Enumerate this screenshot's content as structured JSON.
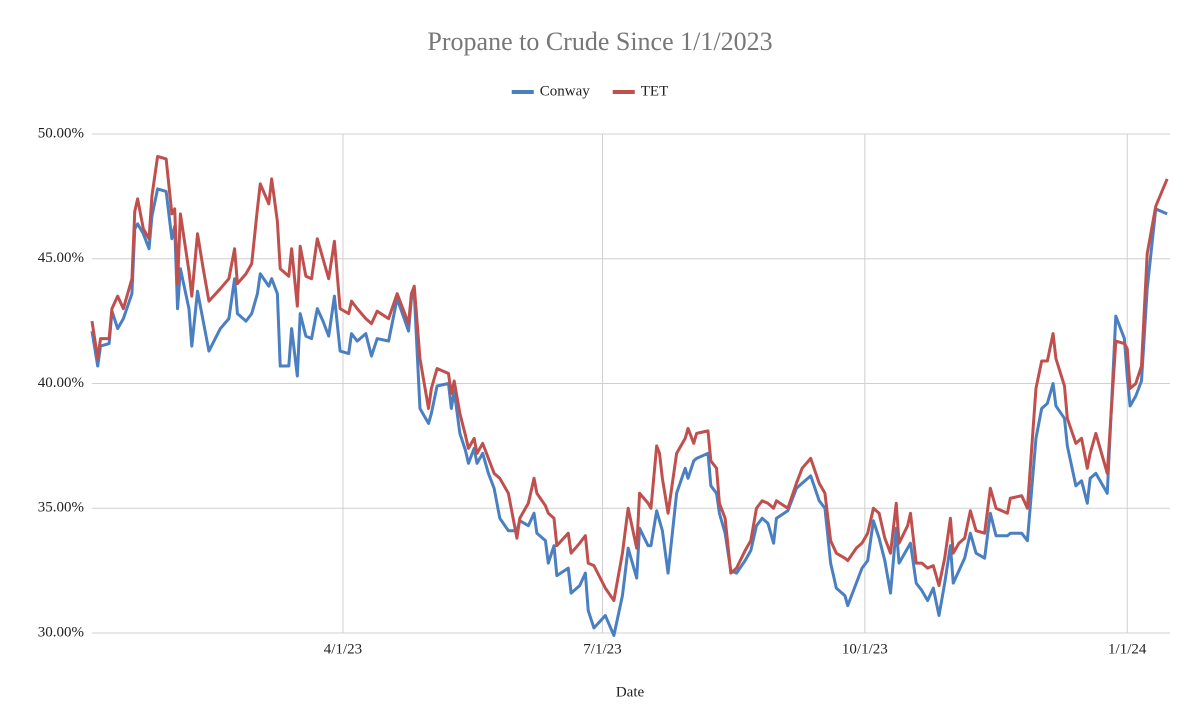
{
  "chart_data": {
    "type": "line",
    "title": "Propane to Crude Since 1/1/2023",
    "x_label": "Date",
    "legend": "top",
    "grid": true,
    "x": [
      "2023-01-03",
      "2023-01-05",
      "2023-01-06",
      "2023-01-09",
      "2023-01-10",
      "2023-01-12",
      "2023-01-14",
      "2023-01-17",
      "2023-01-18",
      "2023-01-19",
      "2023-01-21",
      "2023-01-23",
      "2023-01-24",
      "2023-01-26",
      "2023-01-29",
      "2023-01-31",
      "2023-02-01",
      "2023-02-02",
      "2023-02-03",
      "2023-02-06",
      "2023-02-07",
      "2023-02-09",
      "2023-02-11",
      "2023-02-13",
      "2023-02-17",
      "2023-02-20",
      "2023-02-22",
      "2023-02-23",
      "2023-02-26",
      "2023-02-28",
      "2023-03-02",
      "2023-03-03",
      "2023-03-06",
      "2023-03-07",
      "2023-03-09",
      "2023-03-10",
      "2023-03-13",
      "2023-03-14",
      "2023-03-16",
      "2023-03-17",
      "2023-03-19",
      "2023-03-21",
      "2023-03-23",
      "2023-03-25",
      "2023-03-27",
      "2023-03-29",
      "2023-03-31",
      "2023-04-03",
      "2023-04-04",
      "2023-04-06",
      "2023-04-09",
      "2023-04-11",
      "2023-04-13",
      "2023-04-17",
      "2023-04-20",
      "2023-04-24",
      "2023-04-25",
      "2023-04-26",
      "2023-04-28",
      "2023-05-01",
      "2023-05-02",
      "2023-05-04",
      "2023-05-08",
      "2023-05-09",
      "2023-05-10",
      "2023-05-12",
      "2023-05-14",
      "2023-05-15",
      "2023-05-17",
      "2023-05-18",
      "2023-05-20",
      "2023-05-22",
      "2023-05-24",
      "2023-05-26",
      "2023-05-29",
      "2023-06-01",
      "2023-06-02",
      "2023-06-05",
      "2023-06-07",
      "2023-06-08",
      "2023-06-11",
      "2023-06-12",
      "2023-06-14",
      "2023-06-15",
      "2023-06-19",
      "2023-06-20",
      "2023-06-23",
      "2023-06-25",
      "2023-06-26",
      "2023-06-28",
      "2023-07-02",
      "2023-07-05",
      "2023-07-08",
      "2023-07-10",
      "2023-07-13",
      "2023-07-14",
      "2023-07-17",
      "2023-07-18",
      "2023-07-20",
      "2023-07-21",
      "2023-07-22",
      "2023-07-24",
      "2023-07-27",
      "2023-07-30",
      "2023-07-31",
      "2023-08-02",
      "2023-08-03",
      "2023-08-07",
      "2023-08-08",
      "2023-08-10",
      "2023-08-11",
      "2023-08-13",
      "2023-08-15",
      "2023-08-17",
      "2023-08-20",
      "2023-08-22",
      "2023-08-24",
      "2023-08-26",
      "2023-08-28",
      "2023-08-30",
      "2023-08-31",
      "2023-09-04",
      "2023-09-07",
      "2023-09-09",
      "2023-09-12",
      "2023-09-15",
      "2023-09-17",
      "2023-09-19",
      "2023-09-21",
      "2023-09-24",
      "2023-09-25",
      "2023-09-28",
      "2023-09-30",
      "2023-10-02",
      "2023-10-04",
      "2023-10-06",
      "2023-10-08",
      "2023-10-10",
      "2023-10-12",
      "2023-10-13",
      "2023-10-16",
      "2023-10-17",
      "2023-10-19",
      "2023-10-21",
      "2023-10-23",
      "2023-10-25",
      "2023-10-27",
      "2023-10-29",
      "2023-10-31",
      "2023-11-01",
      "2023-11-03",
      "2023-11-05",
      "2023-11-07",
      "2023-11-09",
      "2023-11-12",
      "2023-11-14",
      "2023-11-16",
      "2023-11-20",
      "2023-11-21",
      "2023-11-25",
      "2023-11-27",
      "2023-11-30",
      "2023-12-02",
      "2023-12-04",
      "2023-12-06",
      "2023-12-07",
      "2023-12-10",
      "2023-12-11",
      "2023-12-14",
      "2023-12-16",
      "2023-12-18",
      "2023-12-19",
      "2023-12-21",
      "2023-12-24",
      "2023-12-25",
      "2023-12-28",
      "2023-12-31",
      "2024-01-01",
      "2024-01-02",
      "2024-01-04",
      "2024-01-06",
      "2024-01-08",
      "2024-01-11",
      "2024-01-15"
    ],
    "series": [
      {
        "name": "Conway",
        "color": "#4a7fc1",
        "values": [
          42.1,
          40.7,
          41.5,
          41.6,
          42.9,
          42.2,
          42.6,
          43.6,
          46.2,
          46.4,
          46.0,
          45.4,
          46.7,
          47.8,
          47.7,
          45.8,
          46.3,
          43.0,
          44.6,
          43.0,
          41.5,
          43.7,
          42.5,
          41.3,
          42.2,
          42.6,
          44.2,
          42.8,
          42.5,
          42.8,
          43.6,
          44.4,
          43.9,
          44.2,
          43.6,
          40.7,
          40.7,
          42.2,
          40.3,
          42.8,
          41.9,
          41.8,
          43.0,
          42.5,
          41.9,
          43.5,
          41.3,
          41.2,
          42.0,
          41.7,
          42.0,
          41.1,
          41.8,
          41.7,
          43.4,
          42.1,
          43.4,
          43.6,
          39.0,
          38.4,
          38.8,
          39.9,
          40.0,
          39.0,
          39.7,
          38.0,
          37.3,
          36.8,
          37.4,
          36.8,
          37.2,
          36.4,
          35.8,
          34.6,
          34.1,
          34.1,
          34.5,
          34.3,
          34.8,
          34.0,
          33.7,
          32.8,
          33.5,
          32.3,
          32.6,
          31.6,
          31.9,
          32.4,
          30.9,
          30.2,
          30.7,
          29.9,
          31.5,
          33.4,
          32.2,
          34.2,
          33.5,
          33.5,
          34.9,
          34.5,
          34.1,
          32.4,
          35.6,
          36.6,
          36.2,
          36.9,
          37.0,
          37.2,
          35.9,
          35.6,
          34.8,
          34.0,
          32.5,
          32.4,
          32.9,
          33.3,
          34.3,
          34.6,
          34.4,
          33.6,
          34.6,
          34.9,
          35.8,
          36.0,
          36.3,
          35.3,
          35.0,
          32.8,
          31.8,
          31.5,
          31.1,
          32.0,
          32.6,
          32.9,
          34.5,
          33.8,
          32.9,
          31.6,
          34.2,
          32.8,
          33.4,
          33.6,
          32.0,
          31.7,
          31.3,
          31.8,
          30.7,
          32.0,
          33.5,
          32.0,
          32.5,
          33.0,
          34.0,
          33.2,
          33.0,
          34.8,
          33.9,
          33.9,
          34.0,
          34.0,
          33.7,
          37.8,
          39.0,
          39.2,
          40.0,
          39.1,
          38.6,
          37.5,
          35.9,
          36.1,
          35.2,
          36.2,
          36.4,
          35.8,
          35.6,
          42.7,
          41.8,
          40.3,
          39.1,
          39.5,
          40.1,
          43.8,
          47.0,
          46.8
        ]
      },
      {
        "name": "TET",
        "color": "#c0504d",
        "values": [
          42.5,
          41.0,
          41.8,
          41.8,
          43.0,
          43.5,
          43.0,
          44.2,
          46.9,
          47.4,
          46.2,
          45.8,
          47.5,
          49.1,
          49.0,
          46.8,
          47.0,
          44.0,
          46.8,
          44.5,
          43.5,
          46.0,
          44.6,
          43.3,
          43.8,
          44.2,
          45.4,
          44.0,
          44.4,
          44.8,
          47.0,
          48.0,
          47.2,
          48.2,
          46.5,
          44.6,
          44.3,
          45.4,
          43.1,
          45.5,
          44.3,
          44.2,
          45.8,
          45.0,
          44.2,
          45.7,
          43.0,
          42.8,
          43.3,
          43.0,
          42.6,
          42.4,
          42.9,
          42.6,
          43.6,
          42.4,
          43.6,
          43.9,
          41.0,
          39.0,
          39.8,
          40.6,
          40.4,
          39.6,
          40.1,
          38.8,
          37.9,
          37.4,
          37.8,
          37.2,
          37.6,
          37.0,
          36.4,
          36.2,
          35.6,
          33.8,
          34.6,
          35.2,
          36.2,
          35.6,
          35.1,
          34.8,
          34.6,
          33.5,
          34.0,
          33.2,
          33.6,
          33.9,
          32.8,
          32.7,
          31.8,
          31.3,
          33.2,
          35.0,
          33.4,
          35.6,
          35.2,
          35.0,
          37.5,
          37.2,
          36.2,
          34.8,
          37.2,
          37.8,
          38.2,
          37.6,
          38.0,
          38.1,
          36.9,
          36.6,
          35.2,
          34.6,
          32.4,
          32.6,
          33.3,
          33.7,
          35.0,
          35.3,
          35.2,
          35.0,
          35.3,
          35.0,
          36.0,
          36.6,
          37.0,
          36.0,
          35.6,
          33.7,
          33.2,
          33.0,
          32.9,
          33.4,
          33.6,
          34.0,
          35.0,
          34.8,
          33.8,
          33.2,
          35.2,
          33.6,
          34.3,
          34.8,
          32.8,
          32.8,
          32.6,
          32.7,
          31.9,
          33.0,
          34.6,
          33.2,
          33.6,
          33.8,
          34.9,
          34.1,
          34.0,
          35.8,
          35.0,
          34.8,
          35.4,
          35.5,
          35.0,
          39.8,
          40.9,
          40.9,
          42.0,
          41.0,
          39.9,
          38.6,
          37.6,
          37.8,
          36.6,
          37.2,
          38.0,
          36.8,
          36.4,
          41.7,
          41.6,
          41.4,
          39.8,
          40.0,
          40.7,
          45.2,
          47.1,
          48.2
        ]
      }
    ],
    "xlim": [
      "2023-01-03",
      "2024-01-16"
    ],
    "xticks": [
      {
        "value": "2023-04-01",
        "label": "4/1/23"
      },
      {
        "value": "2023-07-01",
        "label": "7/1/23"
      },
      {
        "value": "2023-10-01",
        "label": "10/1/23"
      },
      {
        "value": "2024-01-01",
        "label": "1/1/24"
      }
    ],
    "ylim": [
      30,
      50
    ],
    "yticks": [
      {
        "value": 30,
        "label": "30.00%"
      },
      {
        "value": 35,
        "label": "35.00%"
      },
      {
        "value": 40,
        "label": "40.00%"
      },
      {
        "value": 45,
        "label": "45.00%"
      },
      {
        "value": 50,
        "label": "50.00%"
      }
    ]
  }
}
